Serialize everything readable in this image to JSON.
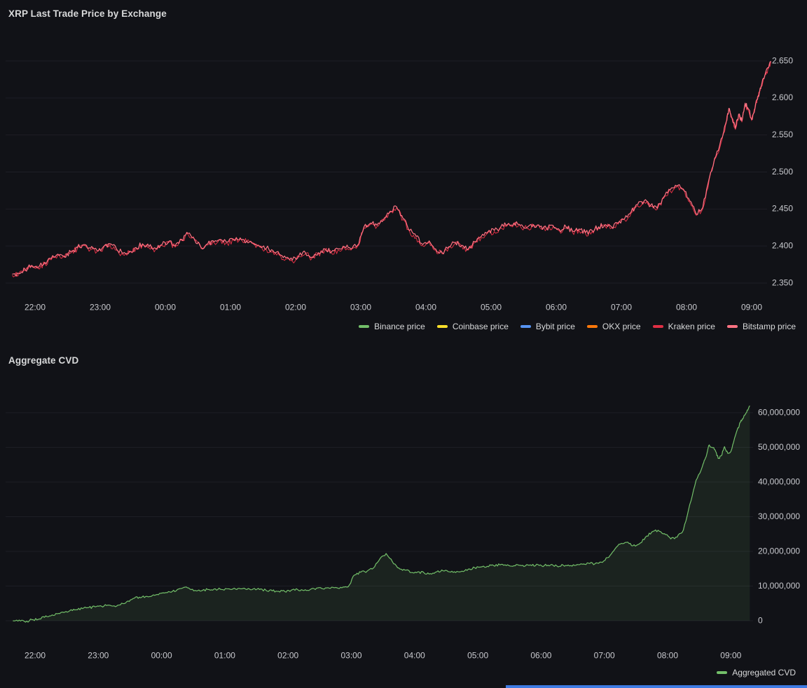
{
  "page": {
    "background": "#111217",
    "scrollbar_color": "#3e7ae2"
  },
  "panels": [
    {
      "id": "xrp-price",
      "title": "XRP Last Trade Price by Exchange",
      "legend": [
        {
          "label": "Binance price",
          "color": "#73bf69"
        },
        {
          "label": "Coinbase price",
          "color": "#fade2a"
        },
        {
          "label": "Bybit price",
          "color": "#5794f2"
        },
        {
          "label": "OKX price",
          "color": "#ff780a"
        },
        {
          "label": "Kraken price",
          "color": "#e02f44"
        },
        {
          "label": "Bitstamp price",
          "color": "#ff7383"
        }
      ]
    },
    {
      "id": "aggregate-cvd",
      "title": "Aggregate CVD",
      "legend": [
        {
          "label": "Aggregated CVD",
          "color": "#73bf69"
        }
      ]
    }
  ],
  "chart_data": [
    {
      "type": "line",
      "title": "XRP Last Trade Price by Exchange",
      "legend_position": "bottom-right",
      "grid": "faint-horizontal",
      "x_axis": {
        "t_is": "hours since 21:45",
        "tick_t": [
          0.25,
          1.25,
          2.25,
          3.25,
          4.25,
          5.25,
          6.25,
          7.25,
          8.25,
          9.25,
          10.25,
          11.25
        ],
        "tick_labels": [
          "22:00",
          "23:00",
          "00:00",
          "01:00",
          "02:00",
          "03:00",
          "04:00",
          "05:00",
          "06:00",
          "07:00",
          "08:00",
          "09:00"
        ]
      },
      "y_axis": {
        "range": [
          2.33,
          2.67
        ],
        "tick_values": [
          2.35,
          2.4,
          2.45,
          2.5,
          2.55,
          2.6,
          2.65
        ],
        "tick_labels": [
          "2.350",
          "2.400",
          "2.450",
          "2.500",
          "2.550",
          "2.600",
          "2.650"
        ],
        "side": "right"
      },
      "series": [
        {
          "name": "XRP last trade price (Binance / Coinbase / Bybit / OKX / Kraken / Bitstamp — six overlapping lines)",
          "colors_drawn": [
            "#e02f44",
            "#ff7383"
          ],
          "t": [
            -0.1,
            0,
            0.1,
            0.2,
            0.3,
            0.4,
            0.5,
            0.6,
            0.7,
            0.8,
            0.9,
            1,
            1.1,
            1.2,
            1.3,
            1.4,
            1.5,
            1.6,
            1.7,
            1.8,
            1.9,
            2,
            2.1,
            2.2,
            2.3,
            2.4,
            2.5,
            2.6,
            2.7,
            2.8,
            2.9,
            3,
            3.1,
            3.2,
            3.3,
            3.4,
            3.5,
            3.6,
            3.7,
            3.8,
            3.9,
            4,
            4.1,
            4.2,
            4.3,
            4.4,
            4.5,
            4.6,
            4.7,
            4.8,
            4.9,
            5,
            5.1,
            5.2,
            5.3,
            5.4,
            5.5,
            5.6,
            5.7,
            5.8,
            5.9,
            6,
            6.1,
            6.2,
            6.3,
            6.4,
            6.5,
            6.6,
            6.7,
            6.8,
            6.9,
            7,
            7.1,
            7.2,
            7.3,
            7.4,
            7.5,
            7.6,
            7.7,
            7.8,
            7.9,
            8,
            8.1,
            8.2,
            8.3,
            8.4,
            8.5,
            8.6,
            8.7,
            8.8,
            8.9,
            9,
            9.1,
            9.2,
            9.3,
            9.4,
            9.5,
            9.6,
            9.7,
            9.8,
            9.9,
            10,
            10.1,
            10.2,
            10.3,
            10.4,
            10.5,
            10.6,
            10.7,
            10.8,
            10.85,
            10.9,
            10.95,
            11,
            11.05,
            11.1,
            11.15,
            11.2,
            11.25,
            11.3,
            11.35,
            11.4,
            11.45,
            11.5,
            11.55
          ],
          "values": [
            2.362,
            2.363,
            2.368,
            2.374,
            2.371,
            2.378,
            2.383,
            2.389,
            2.386,
            2.392,
            2.398,
            2.402,
            2.397,
            2.394,
            2.399,
            2.403,
            2.396,
            2.39,
            2.393,
            2.398,
            2.403,
            2.399,
            2.397,
            2.402,
            2.406,
            2.4,
            2.409,
            2.417,
            2.409,
            2.398,
            2.403,
            2.406,
            2.409,
            2.405,
            2.409,
            2.411,
            2.407,
            2.404,
            2.4,
            2.397,
            2.394,
            2.389,
            2.384,
            2.381,
            2.387,
            2.391,
            2.385,
            2.391,
            2.396,
            2.392,
            2.396,
            2.399,
            2.396,
            2.401,
            2.426,
            2.431,
            2.428,
            2.436,
            2.447,
            2.453,
            2.437,
            2.421,
            2.413,
            2.402,
            2.407,
            2.396,
            2.391,
            2.399,
            2.405,
            2.401,
            2.396,
            2.406,
            2.413,
            2.419,
            2.421,
            2.426,
            2.429,
            2.431,
            2.428,
            2.425,
            2.429,
            2.426,
            2.424,
            2.428,
            2.422,
            2.426,
            2.42,
            2.423,
            2.418,
            2.421,
            2.426,
            2.429,
            2.426,
            2.431,
            2.437,
            2.446,
            2.456,
            2.461,
            2.455,
            2.451,
            2.466,
            2.476,
            2.481,
            2.477,
            2.461,
            2.443,
            2.452,
            2.492,
            2.521,
            2.547,
            2.565,
            2.586,
            2.573,
            2.559,
            2.578,
            2.569,
            2.593,
            2.585,
            2.571,
            2.586,
            2.603,
            2.617,
            2.63,
            2.641,
            2.649
          ]
        }
      ]
    },
    {
      "type": "area",
      "title": "Aggregate CVD",
      "legend_position": "bottom-right",
      "grid": "faint-horizontal",
      "x_axis": {
        "t_is": "hours since 21:45",
        "tick_t": [
          0.25,
          1.25,
          2.25,
          3.25,
          4.25,
          5.25,
          6.25,
          7.25,
          8.25,
          9.25,
          10.25,
          11.25
        ],
        "tick_labels": [
          "22:00",
          "23:00",
          "00:00",
          "01:00",
          "02:00",
          "03:00",
          "04:00",
          "05:00",
          "06:00",
          "07:00",
          "08:00",
          "09:00"
        ]
      },
      "y_axis": {
        "range_millions": [
          -2,
          65
        ],
        "tick_values_millions": [
          0,
          10,
          20,
          30,
          40,
          50,
          60
        ],
        "tick_labels": [
          "0",
          "10,000,000",
          "20,000,000",
          "30,000,000",
          "40,000,000",
          "50,000,000",
          "60,000,000"
        ],
        "side": "right"
      },
      "series": [
        {
          "name": "Aggregated CVD",
          "color": "#73bf69",
          "fill": "rgba(115,191,105,0.10)",
          "t": [
            -0.1,
            0,
            0.1,
            0.2,
            0.3,
            0.4,
            0.5,
            0.6,
            0.7,
            0.8,
            0.9,
            1,
            1.1,
            1.2,
            1.3,
            1.4,
            1.5,
            1.6,
            1.7,
            1.8,
            1.9,
            2,
            2.1,
            2.2,
            2.3,
            2.4,
            2.5,
            2.6,
            2.7,
            2.8,
            2.9,
            3,
            3.1,
            3.2,
            3.3,
            3.4,
            3.5,
            3.6,
            3.7,
            3.8,
            3.9,
            4,
            4.1,
            4.2,
            4.3,
            4.4,
            4.5,
            4.6,
            4.7,
            4.8,
            4.9,
            5,
            5.1,
            5.2,
            5.3,
            5.4,
            5.5,
            5.6,
            5.7,
            5.8,
            5.9,
            6,
            6.1,
            6.2,
            6.3,
            6.4,
            6.5,
            6.6,
            6.7,
            6.8,
            6.9,
            7,
            7.1,
            7.2,
            7.3,
            7.4,
            7.5,
            7.6,
            7.7,
            7.8,
            7.9,
            8,
            8.1,
            8.2,
            8.3,
            8.4,
            8.5,
            8.6,
            8.7,
            8.8,
            8.9,
            9,
            9.1,
            9.2,
            9.3,
            9.4,
            9.5,
            9.6,
            9.7,
            9.8,
            9.9,
            10,
            10.1,
            10.2,
            10.3,
            10.4,
            10.5,
            10.6,
            10.7,
            10.8,
            10.85,
            10.9,
            10.95,
            11,
            11.05,
            11.1,
            11.15,
            11.2,
            11.25,
            11.3,
            11.35,
            11.4,
            11.45,
            11.5,
            11.55
          ],
          "values_millions": [
            0.0,
            0.2,
            -0.4,
            0.3,
            0.4,
            1.0,
            1.4,
            2.0,
            2.4,
            2.9,
            3.2,
            3.5,
            3.8,
            4.0,
            4.2,
            4.5,
            4.3,
            4.6,
            5.5,
            6.4,
            6.8,
            7.0,
            7.2,
            7.5,
            8.0,
            8.2,
            9.0,
            9.6,
            9.1,
            8.6,
            8.8,
            9.0,
            9.2,
            9.0,
            9.2,
            9.4,
            9.2,
            9.0,
            9.2,
            9.0,
            8.8,
            8.6,
            8.5,
            8.4,
            8.8,
            9.0,
            8.7,
            9.0,
            9.4,
            9.2,
            9.4,
            9.6,
            9.5,
            9.8,
            13.2,
            14.0,
            14.3,
            15.2,
            17.8,
            19.4,
            17.0,
            15.2,
            14.6,
            13.9,
            14.1,
            13.8,
            13.6,
            14.1,
            14.4,
            14.1,
            13.9,
            14.3,
            14.9,
            15.3,
            15.5,
            15.7,
            15.9,
            16.1,
            15.9,
            15.7,
            16.0,
            15.8,
            15.9,
            16.2,
            15.9,
            16.1,
            15.8,
            16.0,
            15.8,
            16.0,
            16.3,
            16.6,
            16.4,
            16.9,
            18.2,
            20.2,
            22.1,
            22.6,
            21.6,
            22.1,
            24.1,
            25.6,
            26.1,
            25.1,
            23.6,
            24.1,
            26.2,
            33.5,
            40.5,
            44.5,
            47.0,
            50.5,
            50.0,
            49.3,
            46.8,
            47.6,
            50.2,
            48.3,
            48.8,
            52.0,
            55.0,
            57.2,
            58.6,
            60.1,
            62.0
          ]
        }
      ]
    }
  ]
}
